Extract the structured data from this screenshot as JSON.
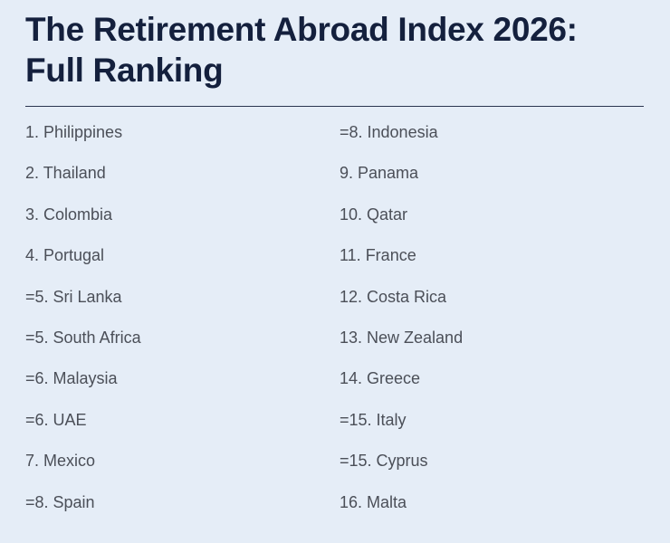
{
  "title": {
    "line1": "The Retirement Abroad Index 2026:",
    "line2": "Full Ranking"
  },
  "ranking": {
    "left": [
      "1. Philippines",
      "2. Thailand",
      "3. Colombia",
      "4. Portugal",
      "=5. Sri Lanka",
      "=5. South Africa",
      "=6. Malaysia",
      "=6. UAE",
      "7. Mexico",
      "=8. Spain"
    ],
    "right": [
      "=8. Indonesia",
      "9. Panama",
      "10. Qatar",
      "11. France",
      "12. Costa Rica",
      "13. New Zealand",
      "14. Greece",
      "=15. Italy",
      "=15. Cyprus",
      "16. Malta"
    ]
  }
}
